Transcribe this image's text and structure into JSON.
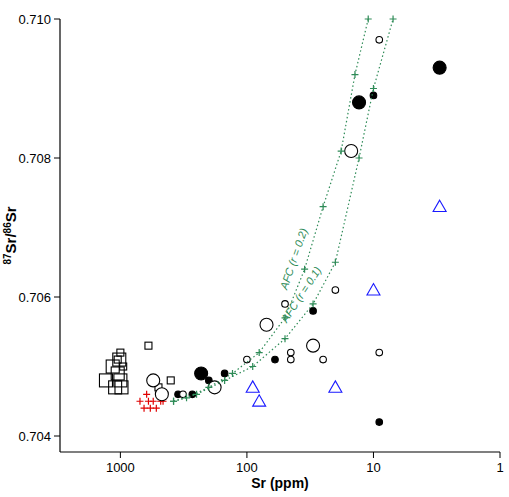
{
  "chart_data": {
    "type": "scatter",
    "x_label": "Sr (ppm)",
    "y_label": "87Sr/86Sr",
    "log": "x",
    "xlim": [
      3000,
      1
    ],
    "xticks": [
      1000,
      100,
      10,
      1
    ],
    "ylim": [
      0.70377,
      0.71
    ],
    "yticks": [
      0.704,
      0.706,
      0.708,
      {
        "value": 0.71,
        "label": "0.710"
      }
    ],
    "grid": false,
    "series": [
      {
        "marker": "square-large",
        "color": "#000000",
        "x": [
          1300,
          1150,
          1050,
          1000,
          980,
          1020,
          1100
        ],
        "values": [
          0.7048,
          0.705,
          0.7049,
          0.7048,
          0.7047,
          0.7051,
          0.7047
        ]
      },
      {
        "marker": "square",
        "color": "#000000",
        "x": [
          1000,
          950,
          1050,
          600,
          400,
          500
        ],
        "values": [
          0.7052,
          0.705,
          0.7051,
          0.7053,
          0.7048,
          0.7047
        ]
      },
      {
        "marker": "plus",
        "color": "#e00000",
        "x": [
          700,
          650,
          600,
          550,
          520,
          500,
          480,
          460,
          620,
          580
        ],
        "values": [
          0.7045,
          0.7044,
          0.7045,
          0.7045,
          0.7044,
          0.7046,
          0.7045,
          0.7045,
          0.7046,
          0.7044
        ]
      },
      {
        "marker": "circle-filled-large",
        "color": "#000000",
        "x": [
          230,
          13,
          3
        ],
        "values": [
          0.7049,
          0.7088,
          0.7093
        ]
      },
      {
        "marker": "circle-filled",
        "color": "#000000",
        "x": [
          350,
          270,
          200,
          150,
          60,
          30,
          10,
          9
        ],
        "values": [
          0.7046,
          0.7046,
          0.7048,
          0.7049,
          0.7051,
          0.7058,
          0.7089,
          0.7042
        ]
      },
      {
        "marker": "circle-open-large",
        "color": "#000000",
        "x": [
          550,
          470,
          180,
          70,
          30,
          15
        ],
        "values": [
          0.7048,
          0.7046,
          0.7047,
          0.7056,
          0.7053,
          0.7081
        ]
      },
      {
        "marker": "circle-open",
        "color": "#000000",
        "x": [
          320,
          100,
          50,
          45,
          45,
          25,
          20,
          9,
          9
        ],
        "values": [
          0.7046,
          0.7051,
          0.7059,
          0.7052,
          0.7051,
          0.7051,
          0.7061,
          0.7097,
          0.7052
        ]
      },
      {
        "marker": "triangle",
        "color": "#1a1aff",
        "x": [
          90,
          80,
          20,
          10,
          3
        ],
        "values": [
          0.7047,
          0.7045,
          0.7047,
          0.7061,
          0.7073
        ]
      },
      {
        "name": "AFC (r = 0.2)",
        "type": "line",
        "line_style": "dotted",
        "marker": "plus",
        "color": "#2e8b57",
        "x": [
          380,
          300,
          200,
          130,
          80,
          50,
          35,
          25,
          18,
          14,
          11
        ],
        "values": [
          0.7045,
          0.70455,
          0.7047,
          0.7049,
          0.7052,
          0.7057,
          0.7064,
          0.7073,
          0.7081,
          0.7092,
          0.71
        ]
      },
      {
        "name": "AFC (r = 0.1)",
        "type": "line",
        "line_style": "dotted",
        "marker": "plus",
        "color": "#2e8b57",
        "x": [
          380,
          250,
          150,
          90,
          50,
          30,
          20,
          13,
          10,
          7
        ],
        "values": [
          0.7045,
          0.7046,
          0.7048,
          0.705,
          0.7054,
          0.7059,
          0.7065,
          0.708,
          0.709,
          0.71
        ]
      }
    ]
  }
}
